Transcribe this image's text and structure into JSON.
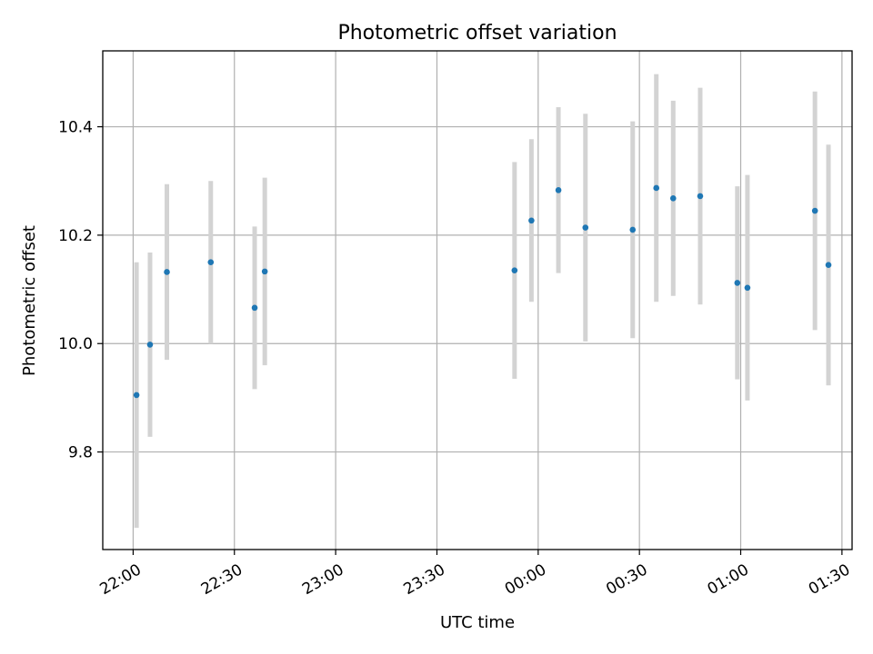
{
  "chart_data": {
    "type": "scatter",
    "title": "Photometric offset variation",
    "xlabel": "UTC time",
    "ylabel": "Photometric offset",
    "x_axis_kind": "time (UTC, HH:MM, crosses midnight)",
    "xlim": [
      "21:51",
      "01:33"
    ],
    "ylim": [
      9.62,
      10.54
    ],
    "x_ticks": [
      "22:00",
      "22:30",
      "23:00",
      "23:30",
      "00:00",
      "00:30",
      "01:00",
      "01:30"
    ],
    "y_ticks": [
      "9.8",
      "10.0",
      "10.2",
      "10.4"
    ],
    "y_tick_values": [
      9.8,
      10.0,
      10.2,
      10.4
    ],
    "grid": true,
    "colors": {
      "marker": "#1f77b4",
      "errorbar": "#d3d3d3",
      "grid": "#b0b0b0",
      "axes": "#000000"
    },
    "points": [
      {
        "x": "22:01",
        "y": 9.905,
        "err": 0.245
      },
      {
        "x": "22:05",
        "y": 9.998,
        "err": 0.17
      },
      {
        "x": "22:10",
        "y": 10.132,
        "err": 0.162
      },
      {
        "x": "22:23",
        "y": 10.15,
        "err": 0.15
      },
      {
        "x": "22:36",
        "y": 10.066,
        "err": 0.15
      },
      {
        "x": "22:39",
        "y": 10.133,
        "err": 0.173
      },
      {
        "x": "23:53",
        "y": 10.135,
        "err": 0.2
      },
      {
        "x": "23:58",
        "y": 10.227,
        "err": 0.15
      },
      {
        "x": "00:06",
        "y": 10.283,
        "err": 0.153
      },
      {
        "x": "00:14",
        "y": 10.214,
        "err": 0.21
      },
      {
        "x": "00:28",
        "y": 10.21,
        "err": 0.2
      },
      {
        "x": "00:35",
        "y": 10.287,
        "err": 0.21
      },
      {
        "x": "00:40",
        "y": 10.268,
        "err": 0.18
      },
      {
        "x": "00:48",
        "y": 10.272,
        "err": 0.2
      },
      {
        "x": "00:59",
        "y": 10.112,
        "err": 0.178
      },
      {
        "x": "01:02",
        "y": 10.103,
        "err": 0.208
      },
      {
        "x": "01:22",
        "y": 10.245,
        "err": 0.22
      },
      {
        "x": "01:26",
        "y": 10.145,
        "err": 0.222
      }
    ]
  }
}
